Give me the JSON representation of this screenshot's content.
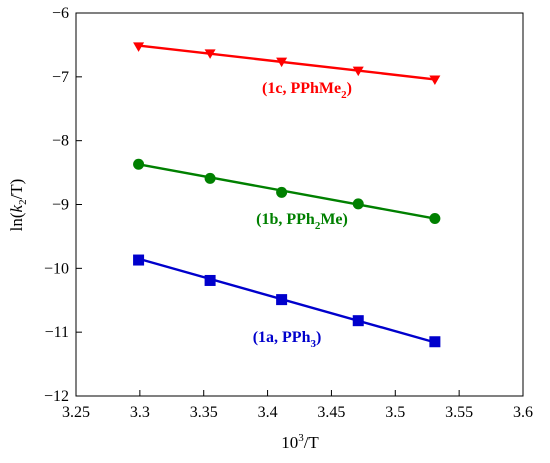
{
  "chart_data": {
    "type": "scatter",
    "xlabel": {
      "base": "10",
      "sup": "3",
      "rest": "/T"
    },
    "ylabel": {
      "pre": "ln(",
      "italic": "k",
      "sub": "2",
      "post": "/T)"
    },
    "xlim": [
      3.25,
      3.6
    ],
    "ylim": [
      -12,
      -6
    ],
    "x_ticks": [
      "3.25",
      "3.3",
      "3.35",
      "3.4",
      "3.45",
      "3.5",
      "3.55",
      "3.6"
    ],
    "y_ticks": [
      "−6",
      "−7",
      "−8",
      "−9",
      "−10",
      "−11",
      "−12"
    ],
    "grid": false,
    "series": [
      {
        "label": {
          "main": "(1c, PPhMe",
          "sub": "2",
          "end": ")"
        },
        "color": "#ff0000",
        "marker": "triangle-down",
        "x": [
          3.299,
          3.355,
          3.411,
          3.471,
          3.531
        ],
        "y": [
          -6.53,
          -6.64,
          -6.77,
          -6.91,
          -7.05
        ],
        "fit": [
          [
            3.299,
            -6.51
          ],
          [
            3.531,
            -7.04
          ]
        ]
      },
      {
        "label": {
          "main": "(1b, PPh",
          "sub": "2",
          "end": "Me)"
        },
        "color": "#008000",
        "marker": "circle",
        "x": [
          3.299,
          3.355,
          3.411,
          3.471,
          3.531
        ],
        "y": [
          -8.37,
          -8.59,
          -8.81,
          -8.99,
          -9.22
        ],
        "fit": [
          [
            3.299,
            -8.37
          ],
          [
            3.531,
            -9.22
          ]
        ]
      },
      {
        "label": {
          "main": "(1a, PPh",
          "sub": "3",
          "end": ")"
        },
        "color": "#0000cc",
        "marker": "square",
        "x": [
          3.299,
          3.355,
          3.411,
          3.471,
          3.531
        ],
        "y": [
          -9.87,
          -10.19,
          -10.49,
          -10.82,
          -11.15
        ],
        "fit": [
          [
            3.299,
            -9.85
          ],
          [
            3.531,
            -11.16
          ]
        ]
      }
    ]
  }
}
